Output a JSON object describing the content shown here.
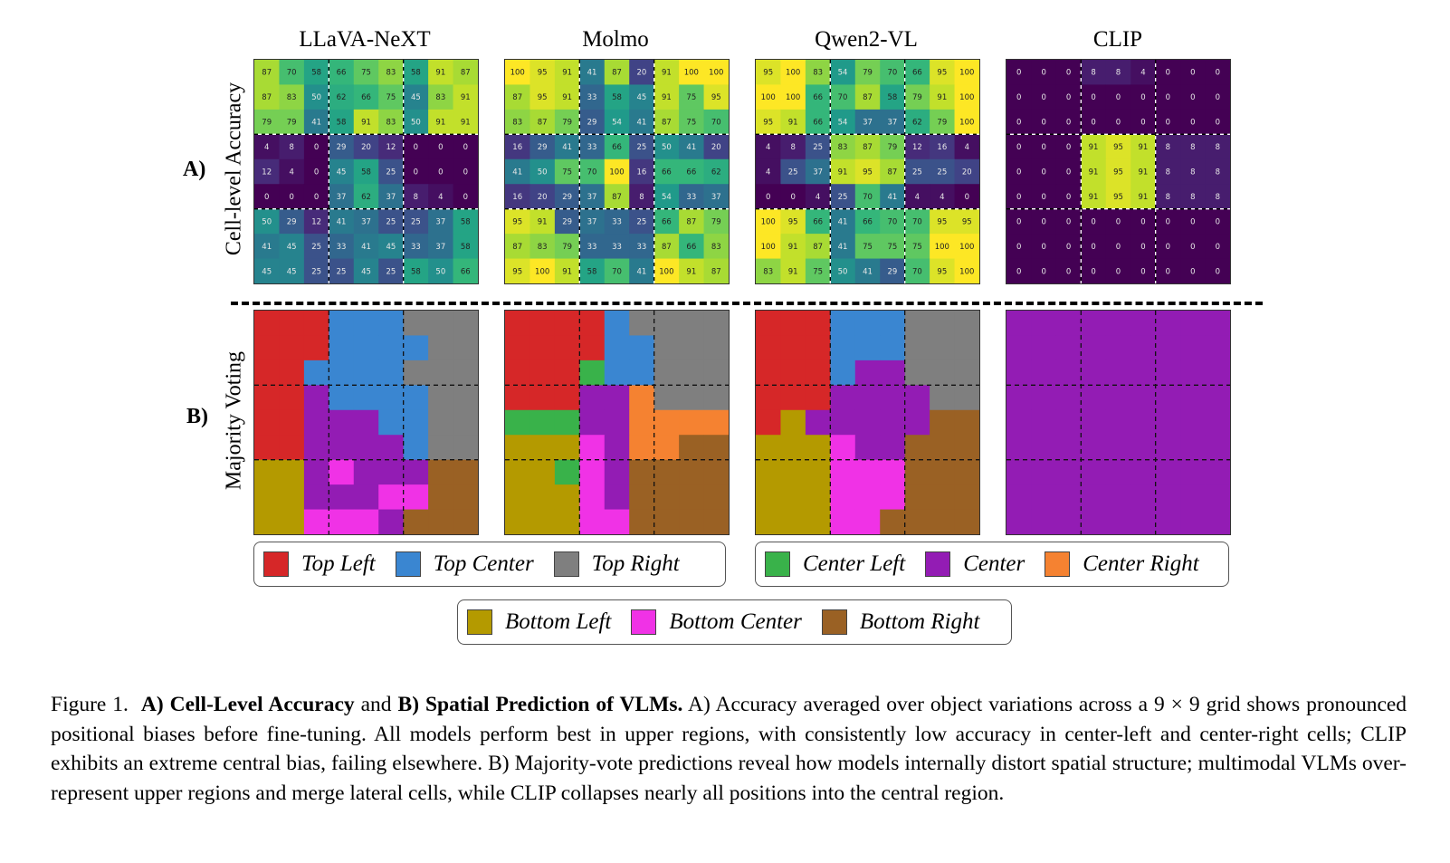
{
  "chart_data": [
    {
      "type": "heatmap",
      "panel": "A",
      "row_label": "Cell-level Accuracy",
      "panel_letter": "A)",
      "colormap": "viridis",
      "value_range": [
        0,
        100
      ],
      "grid_size": [
        9,
        9
      ],
      "block_separators": "dashed every 3 cells",
      "models": [
        {
          "name": "LLaVA-NeXT",
          "values": [
            [
              87,
              70,
              58,
              66,
              75,
              83,
              58,
              91,
              87
            ],
            [
              87,
              83,
              50,
              62,
              66,
              75,
              45,
              83,
              91
            ],
            [
              79,
              79,
              41,
              58,
              91,
              83,
              50,
              91,
              91
            ],
            [
              4,
              8,
              0,
              29,
              20,
              12,
              0,
              0,
              0
            ],
            [
              12,
              4,
              0,
              45,
              58,
              25,
              0,
              0,
              0
            ],
            [
              0,
              0,
              0,
              37,
              62,
              37,
              8,
              4,
              0
            ],
            [
              50,
              29,
              12,
              41,
              37,
              25,
              25,
              37,
              58
            ],
            [
              41,
              45,
              25,
              33,
              41,
              45,
              33,
              37,
              58
            ],
            [
              45,
              45,
              25,
              25,
              45,
              25,
              58,
              50,
              66
            ]
          ]
        },
        {
          "name": "Molmo",
          "values": [
            [
              100,
              95,
              91,
              41,
              87,
              20,
              91,
              100,
              100
            ],
            [
              87,
              95,
              91,
              33,
              58,
              45,
              91,
              75,
              95
            ],
            [
              83,
              87,
              79,
              29,
              54,
              41,
              87,
              75,
              70
            ],
            [
              16,
              29,
              41,
              33,
              66,
              25,
              50,
              41,
              20
            ],
            [
              41,
              50,
              75,
              70,
              100,
              16,
              66,
              66,
              62
            ],
            [
              16,
              20,
              29,
              37,
              87,
              8,
              54,
              33,
              37
            ],
            [
              95,
              91,
              29,
              37,
              33,
              25,
              66,
              87,
              79
            ],
            [
              87,
              83,
              79,
              33,
              33,
              33,
              87,
              66,
              83
            ],
            [
              95,
              100,
              91,
              58,
              70,
              41,
              100,
              91,
              87
            ]
          ]
        },
        {
          "name": "Qwen2-VL",
          "values": [
            [
              95,
              100,
              83,
              54,
              79,
              70,
              66,
              95,
              100
            ],
            [
              100,
              100,
              66,
              70,
              87,
              58,
              79,
              91,
              100
            ],
            [
              95,
              91,
              66,
              54,
              37,
              37,
              62,
              79,
              100
            ],
            [
              4,
              8,
              25,
              83,
              87,
              79,
              12,
              16,
              4
            ],
            [
              4,
              25,
              37,
              91,
              95,
              87,
              25,
              25,
              20
            ],
            [
              0,
              0,
              4,
              25,
              70,
              41,
              4,
              4,
              0
            ],
            [
              100,
              95,
              66,
              41,
              66,
              70,
              70,
              95,
              95
            ],
            [
              100,
              91,
              87,
              41,
              75,
              75,
              75,
              100,
              100
            ],
            [
              83,
              91,
              75,
              50,
              41,
              29,
              70,
              95,
              100
            ]
          ]
        },
        {
          "name": "CLIP",
          "values": [
            [
              0,
              0,
              0,
              8,
              8,
              4,
              0,
              0,
              0
            ],
            [
              0,
              0,
              0,
              0,
              0,
              0,
              0,
              0,
              0
            ],
            [
              0,
              0,
              0,
              0,
              0,
              0,
              0,
              0,
              0
            ],
            [
              0,
              0,
              0,
              91,
              95,
              91,
              8,
              8,
              8
            ],
            [
              0,
              0,
              0,
              91,
              95,
              91,
              8,
              8,
              8
            ],
            [
              0,
              0,
              0,
              91,
              95,
              91,
              8,
              8,
              8
            ],
            [
              0,
              0,
              0,
              0,
              0,
              0,
              0,
              0,
              0
            ],
            [
              0,
              0,
              0,
              0,
              0,
              0,
              0,
              0,
              0
            ],
            [
              0,
              0,
              0,
              0,
              0,
              0,
              0,
              0,
              0
            ]
          ]
        }
      ]
    },
    {
      "type": "heatmap",
      "panel": "B",
      "row_label": "Majority Voting",
      "panel_letter": "B)",
      "grid_size": [
        9,
        9
      ],
      "categories": {
        "TL": {
          "label": "Top Left",
          "color": "#d62728"
        },
        "TC": {
          "label": "Top Center",
          "color": "#3a86d1"
        },
        "TR": {
          "label": "Top Right",
          "color": "#7f7f7f"
        },
        "CL": {
          "label": "Center Left",
          "color": "#39b24a"
        },
        "C": {
          "label": "Center",
          "color": "#931cb4"
        },
        "CR": {
          "label": "Center Right",
          "color": "#f58231"
        },
        "BL": {
          "label": "Bottom Left",
          "color": "#b49a00"
        },
        "BC": {
          "label": "Bottom Center",
          "color": "#f032e6"
        },
        "BR": {
          "label": "Bottom Right",
          "color": "#9a6124"
        }
      },
      "models": [
        {
          "name": "LLaVA-NeXT",
          "values": [
            [
              "TL",
              "TL",
              "TL",
              "TC",
              "TC",
              "TC",
              "TR",
              "TR",
              "TR"
            ],
            [
              "TL",
              "TL",
              "TL",
              "TC",
              "TC",
              "TC",
              "TC",
              "TR",
              "TR"
            ],
            [
              "TL",
              "TL",
              "TC",
              "TC",
              "TC",
              "TC",
              "TR",
              "TR",
              "TR"
            ],
            [
              "TL",
              "TL",
              "C",
              "TC",
              "TC",
              "TC",
              "TC",
              "TR",
              "TR"
            ],
            [
              "TL",
              "TL",
              "C",
              "C",
              "C",
              "TC",
              "TC",
              "TR",
              "TR"
            ],
            [
              "TL",
              "TL",
              "C",
              "C",
              "C",
              "C",
              "TC",
              "TR",
              "TR"
            ],
            [
              "BL",
              "BL",
              "C",
              "BC",
              "C",
              "C",
              "C",
              "BR",
              "BR"
            ],
            [
              "BL",
              "BL",
              "C",
              "C",
              "C",
              "BC",
              "BC",
              "BR",
              "BR"
            ],
            [
              "BL",
              "BL",
              "BC",
              "BC",
              "BC",
              "C",
              "BR",
              "BR",
              "BR"
            ]
          ]
        },
        {
          "name": "Molmo",
          "values": [
            [
              "TL",
              "TL",
              "TL",
              "TL",
              "TC",
              "TR",
              "TR",
              "TR",
              "TR"
            ],
            [
              "TL",
              "TL",
              "TL",
              "TL",
              "TC",
              "TC",
              "TR",
              "TR",
              "TR"
            ],
            [
              "TL",
              "TL",
              "TL",
              "CL",
              "TC",
              "TC",
              "TR",
              "TR",
              "TR"
            ],
            [
              "TL",
              "TL",
              "TL",
              "C",
              "C",
              "CR",
              "TR",
              "TR",
              "TR"
            ],
            [
              "CL",
              "CL",
              "CL",
              "C",
              "C",
              "CR",
              "CR",
              "CR",
              "CR"
            ],
            [
              "BL",
              "BL",
              "BL",
              "BC",
              "C",
              "CR",
              "CR",
              "BR",
              "BR"
            ],
            [
              "BL",
              "BL",
              "CL",
              "BC",
              "C",
              "BR",
              "BR",
              "BR",
              "BR"
            ],
            [
              "BL",
              "BL",
              "BL",
              "BC",
              "C",
              "BR",
              "BR",
              "BR",
              "BR"
            ],
            [
              "BL",
              "BL",
              "BL",
              "BC",
              "BC",
              "BR",
              "BR",
              "BR",
              "BR"
            ]
          ]
        },
        {
          "name": "Qwen2-VL",
          "values": [
            [
              "TL",
              "TL",
              "TL",
              "TC",
              "TC",
              "TC",
              "TR",
              "TR",
              "TR"
            ],
            [
              "TL",
              "TL",
              "TL",
              "TC",
              "TC",
              "TC",
              "TR",
              "TR",
              "TR"
            ],
            [
              "TL",
              "TL",
              "TL",
              "TC",
              "C",
              "C",
              "TR",
              "TR",
              "TR"
            ],
            [
              "TL",
              "TL",
              "TL",
              "C",
              "C",
              "C",
              "C",
              "TR",
              "TR"
            ],
            [
              "TL",
              "BL",
              "C",
              "C",
              "C",
              "C",
              "C",
              "BR",
              "BR"
            ],
            [
              "BL",
              "BL",
              "BL",
              "BC",
              "C",
              "C",
              "BR",
              "BR",
              "BR"
            ],
            [
              "BL",
              "BL",
              "BL",
              "BC",
              "BC",
              "BC",
              "BR",
              "BR",
              "BR"
            ],
            [
              "BL",
              "BL",
              "BL",
              "BC",
              "BC",
              "BC",
              "BR",
              "BR",
              "BR"
            ],
            [
              "BL",
              "BL",
              "BL",
              "BC",
              "BC",
              "BR",
              "BR",
              "BR",
              "BR"
            ]
          ]
        },
        {
          "name": "CLIP",
          "values": [
            [
              "C",
              "C",
              "C",
              "C",
              "C",
              "C",
              "C",
              "C",
              "C"
            ],
            [
              "C",
              "C",
              "C",
              "C",
              "C",
              "C",
              "C",
              "C",
              "C"
            ],
            [
              "C",
              "C",
              "C",
              "C",
              "C",
              "C",
              "C",
              "C",
              "C"
            ],
            [
              "C",
              "C",
              "C",
              "C",
              "C",
              "C",
              "C",
              "C",
              "C"
            ],
            [
              "C",
              "C",
              "C",
              "C",
              "C",
              "C",
              "C",
              "C",
              "C"
            ],
            [
              "C",
              "C",
              "C",
              "C",
              "C",
              "C",
              "C",
              "C",
              "C"
            ],
            [
              "C",
              "C",
              "C",
              "C",
              "C",
              "C",
              "C",
              "C",
              "C"
            ],
            [
              "C",
              "C",
              "C",
              "C",
              "C",
              "C",
              "C",
              "C",
              "C"
            ],
            [
              "C",
              "C",
              "C",
              "C",
              "C",
              "C",
              "C",
              "C",
              "C"
            ]
          ]
        }
      ],
      "legends": [
        [
          "TL",
          "TC",
          "TR"
        ],
        [
          "CL",
          "C",
          "CR"
        ],
        [
          "BL",
          "BC",
          "BR"
        ]
      ]
    }
  ],
  "column_titles": [
    "LLaVA-NeXT",
    "Molmo",
    "Qwen2-VL",
    "CLIP"
  ],
  "caption": {
    "prefix": "Figure 1.",
    "bold_a": "A) Cell-Level Accuracy",
    "and": "and",
    "bold_b": "B) Spatial Prediction of VLMs.",
    "body": "A) Accuracy averaged over object variations across a 9 × 9 grid shows pronounced positional biases before fine-tuning. All models perform best in upper regions, with consistently low accuracy in center-left and center-right cells; CLIP exhibits an extreme central bias, failing elsewhere. B) Majority-vote predictions reveal how models internally distort spatial structure; multimodal VLMs over-represent upper regions and merge lateral cells, while CLIP collapses nearly all positions into the central region."
  }
}
